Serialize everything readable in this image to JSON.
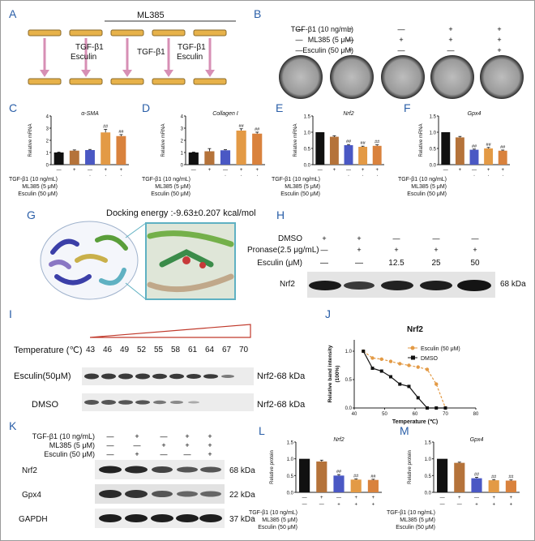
{
  "panels": [
    "A",
    "B",
    "C",
    "D",
    "E",
    "F",
    "G",
    "H",
    "I",
    "J",
    "K",
    "L",
    "M"
  ],
  "panel_a": {
    "group_label": "ML385",
    "treat_1a": "TGF-β1",
    "treat_1b": "Esculin",
    "treat_2": "TGF-β1",
    "treat_3a": "TGF-β1",
    "treat_3b": "Esculin"
  },
  "panel_b": {
    "rows": [
      {
        "label": "TGF-β1 (10 ng/mL)",
        "signs": [
          "—",
          "+",
          "—",
          "+",
          "+"
        ]
      },
      {
        "label": "ML385 (5 μM)",
        "signs": [
          "—",
          "—",
          "+",
          "+",
          "+"
        ]
      },
      {
        "label": "Esculin (50 μM)",
        "signs": [
          "—",
          "+",
          "—",
          "—",
          "+"
        ]
      }
    ]
  },
  "treat_rows_small": [
    {
      "label": "TGF-β1 (10 ng/mL)",
      "signs": [
        "—",
        "+",
        "—",
        "+",
        "+"
      ]
    },
    {
      "label": "ML385 (5 μM)",
      "signs": [
        "—",
        "—",
        "+",
        "+",
        "+"
      ]
    },
    {
      "label": "Esculin (50 μM)",
      "signs": [
        "—",
        "+",
        "—",
        "—",
        "+"
      ]
    }
  ],
  "bar_colors": [
    "#111111",
    "#b5733a",
    "#4a58c4",
    "#e39a45",
    "#d9823d"
  ],
  "bar_charts": [
    {
      "title": "α-SMA",
      "ylabel": "Relative mRNA",
      "ylim": [
        0,
        4
      ],
      "ticks": [
        "0",
        "1",
        "2",
        "3",
        "4"
      ],
      "values": [
        1.0,
        1.15,
        1.2,
        2.65,
        2.35
      ],
      "errors": [
        0.03,
        0.06,
        0.05,
        0.25,
        0.12
      ],
      "marks": [
        "",
        "",
        "",
        "##",
        "##"
      ]
    },
    {
      "title": "Collagen I",
      "ylabel": "Relative mRNA",
      "ylim": [
        0,
        4
      ],
      "ticks": [
        "0",
        "1",
        "2",
        "3",
        "4"
      ],
      "values": [
        1.0,
        1.1,
        1.18,
        2.8,
        2.55
      ],
      "errors": [
        0.03,
        0.22,
        0.05,
        0.15,
        0.12
      ],
      "marks": [
        "",
        "",
        "",
        "##",
        "##"
      ]
    },
    {
      "title": "Nrf2",
      "ylabel": "Relative mRNA",
      "ylim": [
        0,
        1.5
      ],
      "ticks": [
        "0.0",
        "0.5",
        "1.0",
        "1.5"
      ],
      "values": [
        1.0,
        0.86,
        0.6,
        0.55,
        0.58
      ],
      "errors": [
        0.0,
        0.03,
        0.02,
        0.02,
        0.03
      ],
      "marks": [
        "",
        "",
        "##",
        "##",
        "##"
      ]
    },
    {
      "title": "Gpx4",
      "ylabel": "Relative mRNA",
      "ylim": [
        0,
        1.5
      ],
      "ticks": [
        "0.0",
        "0.5",
        "1.0",
        "1.5"
      ],
      "values": [
        1.0,
        0.84,
        0.46,
        0.5,
        0.43
      ],
      "errors": [
        0.0,
        0.03,
        0.02,
        0.03,
        0.02
      ],
      "marks": [
        "",
        "",
        "##",
        "##",
        "##"
      ]
    },
    {
      "title": "Nrf2",
      "ylabel": "Relative protein",
      "ylim": [
        0,
        1.5
      ],
      "ticks": [
        "0.0",
        "0.5",
        "1.0",
        "1.5"
      ],
      "values": [
        1.0,
        0.92,
        0.5,
        0.38,
        0.37
      ],
      "errors": [
        0.0,
        0.04,
        0.03,
        0.02,
        0.02
      ],
      "marks": [
        "",
        "",
        "##",
        "##",
        "##"
      ]
    },
    {
      "title": "Gpx4",
      "ylabel": "Relative protein",
      "ylim": [
        0,
        1.5
      ],
      "ticks": [
        "0.0",
        "0.5",
        "1.0",
        "1.5"
      ],
      "values": [
        1.0,
        0.88,
        0.42,
        0.36,
        0.35
      ],
      "errors": [
        0.0,
        0.02,
        0.03,
        0.02,
        0.02
      ],
      "marks": [
        "",
        "",
        "##",
        "##",
        "##"
      ]
    }
  ],
  "panel_g": {
    "title": "Docking energy :-9.63±0.207 kcal/mol"
  },
  "panel_h": {
    "rows": [
      {
        "label": "DMSO",
        "signs": [
          "+",
          "+",
          "—",
          "—",
          "—"
        ]
      },
      {
        "label": "Pronase(2.5 μg/mL)",
        "signs": [
          "—",
          "+",
          "+",
          "+",
          "+"
        ]
      },
      {
        "label": "Esculin (μM)",
        "signs": [
          "—",
          "—",
          "12.5",
          "25",
          "50"
        ]
      }
    ],
    "band_label": "Nrf2",
    "kda": "68 kDa"
  },
  "panel_i": {
    "temp_label": "Temperature (℃)",
    "temps": [
      "43",
      "46",
      "49",
      "52",
      "55",
      "58",
      "61",
      "64",
      "67",
      "70"
    ],
    "rows": [
      {
        "label": "Esculin(50μM)",
        "kda": "Nrf2-68 kDa"
      },
      {
        "label": "DMSO",
        "kda": "Nrf2-68 kDa"
      }
    ]
  },
  "chart_data": {
    "type": "line",
    "title": "Nrf2",
    "xlabel": "Temperature (℃)",
    "ylabel": "Relative band intensity (100%)",
    "xlim": [
      40,
      80
    ],
    "ylim": [
      0,
      1.2
    ],
    "xticks": [
      "40",
      "50",
      "60",
      "70",
      "80"
    ],
    "yticks": [
      "0.0",
      "0.5",
      "1.0"
    ],
    "series": [
      {
        "name": "Esculin (50 μM)",
        "color": "#e39a45",
        "x": [
          43,
          46,
          49,
          52,
          55,
          58,
          61,
          64,
          67,
          70
        ],
        "y": [
          1.0,
          0.88,
          0.86,
          0.82,
          0.78,
          0.75,
          0.72,
          0.68,
          0.42,
          0.0
        ]
      },
      {
        "name": "DMSO",
        "color": "#111111",
        "x": [
          43,
          46,
          49,
          52,
          55,
          58,
          61,
          64,
          67,
          70
        ],
        "y": [
          1.0,
          0.7,
          0.65,
          0.55,
          0.42,
          0.38,
          0.18,
          0.0,
          0.0,
          0.0
        ]
      }
    ]
  },
  "panel_k": {
    "rows": [
      {
        "label": "TGF-β1 (10 ng/mL)",
        "signs": [
          "—",
          "+",
          "—",
          "+",
          "+"
        ]
      },
      {
        "label": "ML385 (5 μM)",
        "signs": [
          "—",
          "—",
          "+",
          "+",
          "+"
        ]
      },
      {
        "label": "Esculin (50 μM)",
        "signs": [
          "—",
          "+",
          "—",
          "—",
          "+"
        ]
      }
    ],
    "blots": [
      {
        "label": "Nrf2",
        "kda": "68 kDa"
      },
      {
        "label": "Gpx4",
        "kda": "22 kDa"
      },
      {
        "label": "GAPDH",
        "kda": "37 kDa"
      }
    ]
  }
}
